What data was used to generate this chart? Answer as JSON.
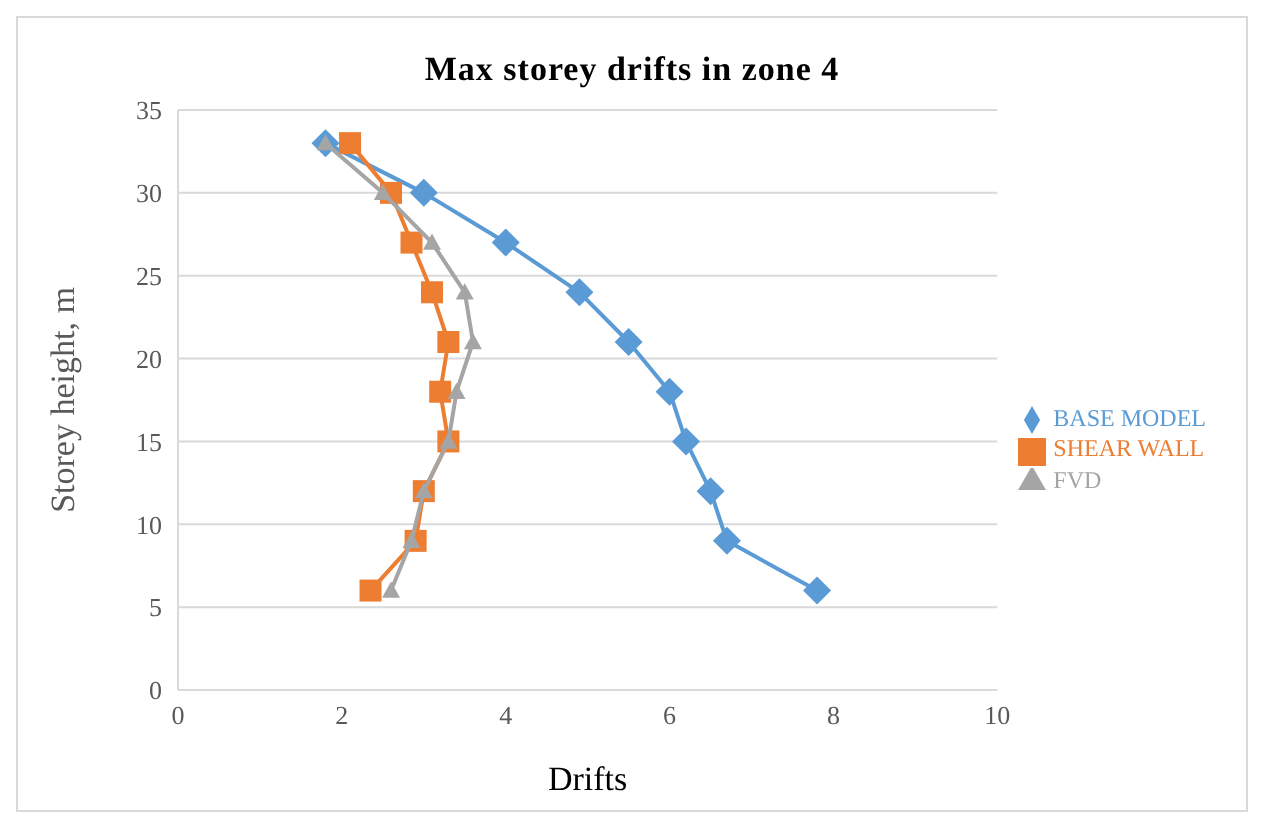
{
  "chart_data": {
    "type": "line",
    "title": "Max storey drifts in zone 4",
    "xlabel": "Drifts",
    "ylabel": "Storey height, m",
    "series": [
      {
        "name": "BASE MODEL",
        "color": "#5b9bd5",
        "marker": "diamond",
        "x": [
          1.8,
          3.0,
          4.0,
          4.9,
          5.5,
          6.0,
          6.2,
          6.5,
          6.7,
          7.8
        ],
        "values": [
          33,
          30,
          27,
          24,
          21,
          18,
          15,
          12,
          9,
          6
        ]
      },
      {
        "name": "SHEAR WALL",
        "color": "#ed7d31",
        "marker": "square",
        "x": [
          2.1,
          2.6,
          2.85,
          3.1,
          3.3,
          3.2,
          3.3,
          3.0,
          2.9,
          2.35
        ],
        "values": [
          33,
          30,
          27,
          24,
          21,
          18,
          15,
          12,
          9,
          6
        ]
      },
      {
        "name": "FVD",
        "color": "#a5a5a5",
        "marker": "triangle",
        "x": [
          1.8,
          2.5,
          3.1,
          3.5,
          3.6,
          3.4,
          3.3,
          3.0,
          2.85,
          2.6
        ],
        "values": [
          33,
          30,
          27,
          24,
          21,
          18,
          15,
          12,
          9,
          6
        ]
      }
    ],
    "xlim": [
      0,
      10
    ],
    "xticks": [
      0,
      2,
      4,
      6,
      8,
      10
    ],
    "ylim": [
      0,
      35
    ],
    "yticks": [
      0,
      5,
      10,
      15,
      20,
      25,
      30,
      35
    ],
    "grid": "y",
    "legend": "right"
  }
}
